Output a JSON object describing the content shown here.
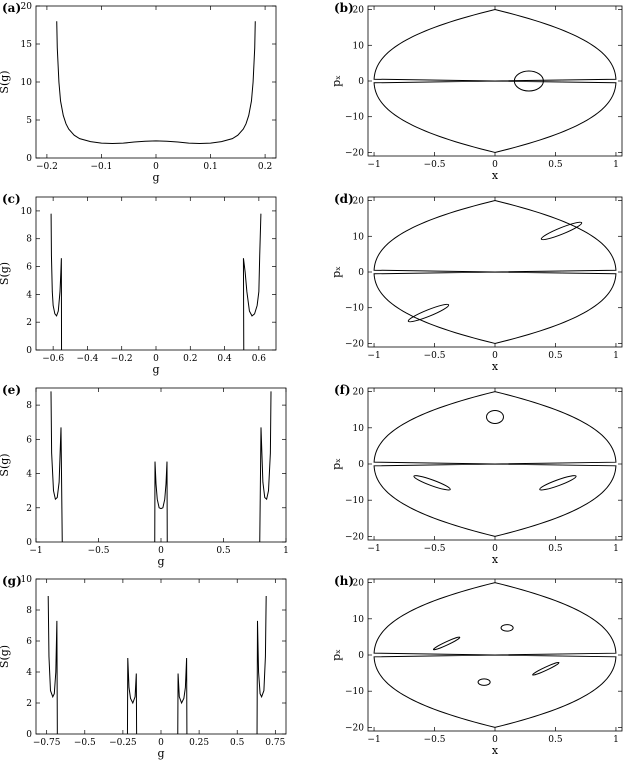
{
  "chart_data": [
    {
      "panel": "(a)",
      "type": "line",
      "xlabel": "g",
      "ylabel": "S(g)",
      "xlim": [
        -0.22,
        0.22
      ],
      "ylim": [
        0,
        20
      ],
      "xticks": [
        "-0.2",
        "-0.1",
        "0",
        "0.1",
        "0.2"
      ],
      "yticks": [
        "0",
        "5",
        "10",
        "15",
        "20"
      ],
      "series": [
        {
          "x": [
            -0.182,
            -0.181,
            -0.178,
            -0.175,
            -0.17,
            -0.165,
            -0.16,
            -0.15,
            -0.14,
            -0.12,
            -0.1,
            -0.08,
            -0.06,
            -0.04,
            -0.02,
            0,
            0.02,
            0.04,
            0.06,
            0.08,
            0.1,
            0.12,
            0.14,
            0.15,
            0.16,
            0.165,
            0.17,
            0.175,
            0.178,
            0.181,
            0.182
          ],
          "y": [
            18,
            14.5,
            10,
            7.5,
            5.6,
            4.5,
            3.8,
            3.0,
            2.55,
            2.15,
            1.95,
            1.9,
            1.95,
            2.1,
            2.2,
            2.25,
            2.2,
            2.1,
            1.95,
            1.9,
            1.95,
            2.15,
            2.55,
            3.0,
            3.8,
            4.5,
            5.6,
            7.5,
            10,
            14.5,
            18
          ]
        }
      ]
    },
    {
      "panel": "(b)",
      "type": "line",
      "xlabel": "x",
      "ylabel": "pₓ",
      "xlim": [
        -1.05,
        1.05
      ],
      "ylim": [
        -21,
        21
      ],
      "xticks": [
        "-1",
        "-0.5",
        "0",
        "0.5",
        "1"
      ],
      "yticks": [
        "-20",
        "-10",
        "0",
        "10",
        "20"
      ],
      "series": [
        {
          "shape": "outer"
        },
        {
          "shape": "ellipse",
          "cx": 0.28,
          "cy": 0,
          "rx": 0.12,
          "ry": 2.8,
          "angle": 0
        }
      ]
    },
    {
      "panel": "(c)",
      "type": "line",
      "xlabel": "g",
      "ylabel": "S(g)",
      "xlim": [
        -0.7,
        0.7
      ],
      "ylim": [
        0,
        11
      ],
      "xticks": [
        "-0.6",
        "-0.4",
        "-0.2",
        "0",
        "0.2",
        "0.4",
        "0.6"
      ],
      "yticks": [
        "0",
        "2",
        "4",
        "6",
        "8",
        "10"
      ],
      "series": [
        {
          "x": [
            -0.612,
            -0.61,
            -0.605,
            -0.6,
            -0.59,
            -0.58,
            -0.57,
            -0.56,
            -0.555,
            -0.552,
            -0.551
          ],
          "y": [
            9.8,
            6.8,
            4.2,
            3.2,
            2.6,
            2.45,
            2.8,
            4.2,
            5.6,
            6.6,
            0
          ]
        },
        {
          "x": [
            0.512,
            0.51,
            0.52,
            0.53,
            0.545,
            0.56,
            0.575,
            0.59,
            0.6,
            0.605,
            0.612
          ],
          "y": [
            0,
            6.6,
            5.6,
            4.2,
            2.8,
            2.45,
            2.6,
            3.2,
            4.2,
            6.8,
            9.8
          ]
        }
      ]
    },
    {
      "panel": "(d)",
      "type": "line",
      "xlabel": "x",
      "ylabel": "pₓ",
      "xlim": [
        -1.05,
        1.05
      ],
      "ylim": [
        -21,
        21
      ],
      "xticks": [
        "-1",
        "-0.5",
        "0",
        "0.5",
        "1"
      ],
      "yticks": [
        "-20",
        "-10",
        "0",
        "10",
        "20"
      ],
      "series": [
        {
          "shape": "outer"
        },
        {
          "shape": "ellipse",
          "cx": 0.55,
          "cy": 11.5,
          "rx": 0.18,
          "ry": 0.9,
          "angle": -22
        },
        {
          "shape": "ellipse",
          "cx": -0.55,
          "cy": -11.5,
          "rx": 0.18,
          "ry": 0.9,
          "angle": -22
        }
      ]
    },
    {
      "panel": "(e)",
      "type": "line",
      "xlabel": "g",
      "ylabel": "S(g)",
      "xlim": [
        -1.0,
        1.0
      ],
      "ylim": [
        0,
        9
      ],
      "xticks": [
        "-1",
        "-0.5",
        "0",
        "0.5",
        "1"
      ],
      "yticks": [
        "0",
        "2",
        "4",
        "6",
        "8"
      ],
      "series": [
        {
          "x": [
            -0.88,
            -0.875,
            -0.86,
            -0.845,
            -0.83,
            -0.815,
            -0.8,
            -0.79
          ],
          "y": [
            8.8,
            5.2,
            3.0,
            2.5,
            2.6,
            3.5,
            6.7,
            0
          ]
        },
        {
          "x": [
            -0.05,
            -0.048,
            -0.04,
            -0.03,
            -0.015,
            0,
            0.015,
            0.03,
            0.04,
            0.048,
            0.05
          ],
          "y": [
            0,
            4.7,
            3.4,
            2.5,
            2.0,
            1.95,
            2.0,
            2.5,
            3.4,
            4.7,
            0
          ]
        },
        {
          "x": [
            0.79,
            0.8,
            0.815,
            0.83,
            0.845,
            0.86,
            0.875,
            0.88
          ],
          "y": [
            0,
            6.7,
            3.5,
            2.6,
            2.5,
            3.0,
            5.2,
            8.8
          ]
        }
      ]
    },
    {
      "panel": "(f)",
      "type": "line",
      "xlabel": "x",
      "ylabel": "pₓ",
      "xlim": [
        -1.05,
        1.05
      ],
      "ylim": [
        -21,
        21
      ],
      "xticks": [
        "-1",
        "-0.5",
        "0",
        "0.5",
        "1"
      ],
      "yticks": [
        "-20",
        "-10",
        "0",
        "10",
        "20"
      ],
      "series": [
        {
          "shape": "outer"
        },
        {
          "shape": "ellipse",
          "cx": 0,
          "cy": 13,
          "rx": 0.07,
          "ry": 1.8,
          "angle": 0
        },
        {
          "shape": "ellipse",
          "cx": -0.52,
          "cy": -5.2,
          "rx": 0.16,
          "ry": 0.8,
          "angle": 20
        },
        {
          "shape": "ellipse",
          "cx": 0.52,
          "cy": -5.2,
          "rx": 0.16,
          "ry": 0.8,
          "angle": -20
        }
      ]
    },
    {
      "panel": "(g)",
      "type": "line",
      "xlabel": "g",
      "ylabel": "S(g)",
      "xlim": [
        -0.82,
        0.82
      ],
      "ylim": [
        0,
        10
      ],
      "xticks": [
        "-0.75",
        "-0.5",
        "-0.25",
        "0",
        "0.25",
        "0.5",
        "0.75"
      ],
      "yticks": [
        "0",
        "2",
        "4",
        "6",
        "8",
        "10"
      ],
      "series": [
        {
          "x": [
            -0.74,
            -0.735,
            -0.725,
            -0.71,
            -0.7,
            -0.69,
            -0.683,
            -0.68
          ],
          "y": [
            8.9,
            5.0,
            2.8,
            2.4,
            2.6,
            4.0,
            7.3,
            0
          ]
        },
        {
          "x": [
            -0.22,
            -0.218,
            -0.21,
            -0.2,
            -0.185,
            -0.17,
            -0.162,
            -0.16
          ],
          "y": [
            0,
            4.9,
            3.0,
            2.3,
            2.0,
            2.4,
            3.9,
            0
          ]
        },
        {
          "x": [
            0.11,
            0.112,
            0.12,
            0.135,
            0.15,
            0.16,
            0.168,
            0.17
          ],
          "y": [
            0,
            3.9,
            2.4,
            2.0,
            2.3,
            3.0,
            4.9,
            0
          ]
        },
        {
          "x": [
            0.63,
            0.633,
            0.64,
            0.65,
            0.66,
            0.675,
            0.685,
            0.69
          ],
          "y": [
            0,
            7.3,
            4.0,
            2.6,
            2.4,
            2.8,
            5.0,
            8.9
          ]
        }
      ]
    },
    {
      "panel": "(h)",
      "type": "line",
      "xlabel": "x",
      "ylabel": "pₓ",
      "xlim": [
        -1.05,
        1.05
      ],
      "ylim": [
        -21,
        21
      ],
      "xticks": [
        "-1",
        "-0.5",
        "0",
        "0.5",
        "1"
      ],
      "yticks": [
        "-20",
        "-10",
        "0",
        "10",
        "20"
      ],
      "series": [
        {
          "shape": "outer"
        },
        {
          "shape": "ellipse",
          "cx": -0.4,
          "cy": 3.2,
          "rx": 0.12,
          "ry": 0.45,
          "angle": -25
        },
        {
          "shape": "ellipse",
          "cx": 0.1,
          "cy": 7.5,
          "rx": 0.05,
          "ry": 0.9,
          "angle": 0
        },
        {
          "shape": "ellipse",
          "cx": -0.09,
          "cy": -7.5,
          "rx": 0.05,
          "ry": 0.9,
          "angle": 0
        },
        {
          "shape": "ellipse",
          "cx": 0.42,
          "cy": -3.8,
          "rx": 0.12,
          "ry": 0.45,
          "angle": -25
        }
      ]
    }
  ]
}
